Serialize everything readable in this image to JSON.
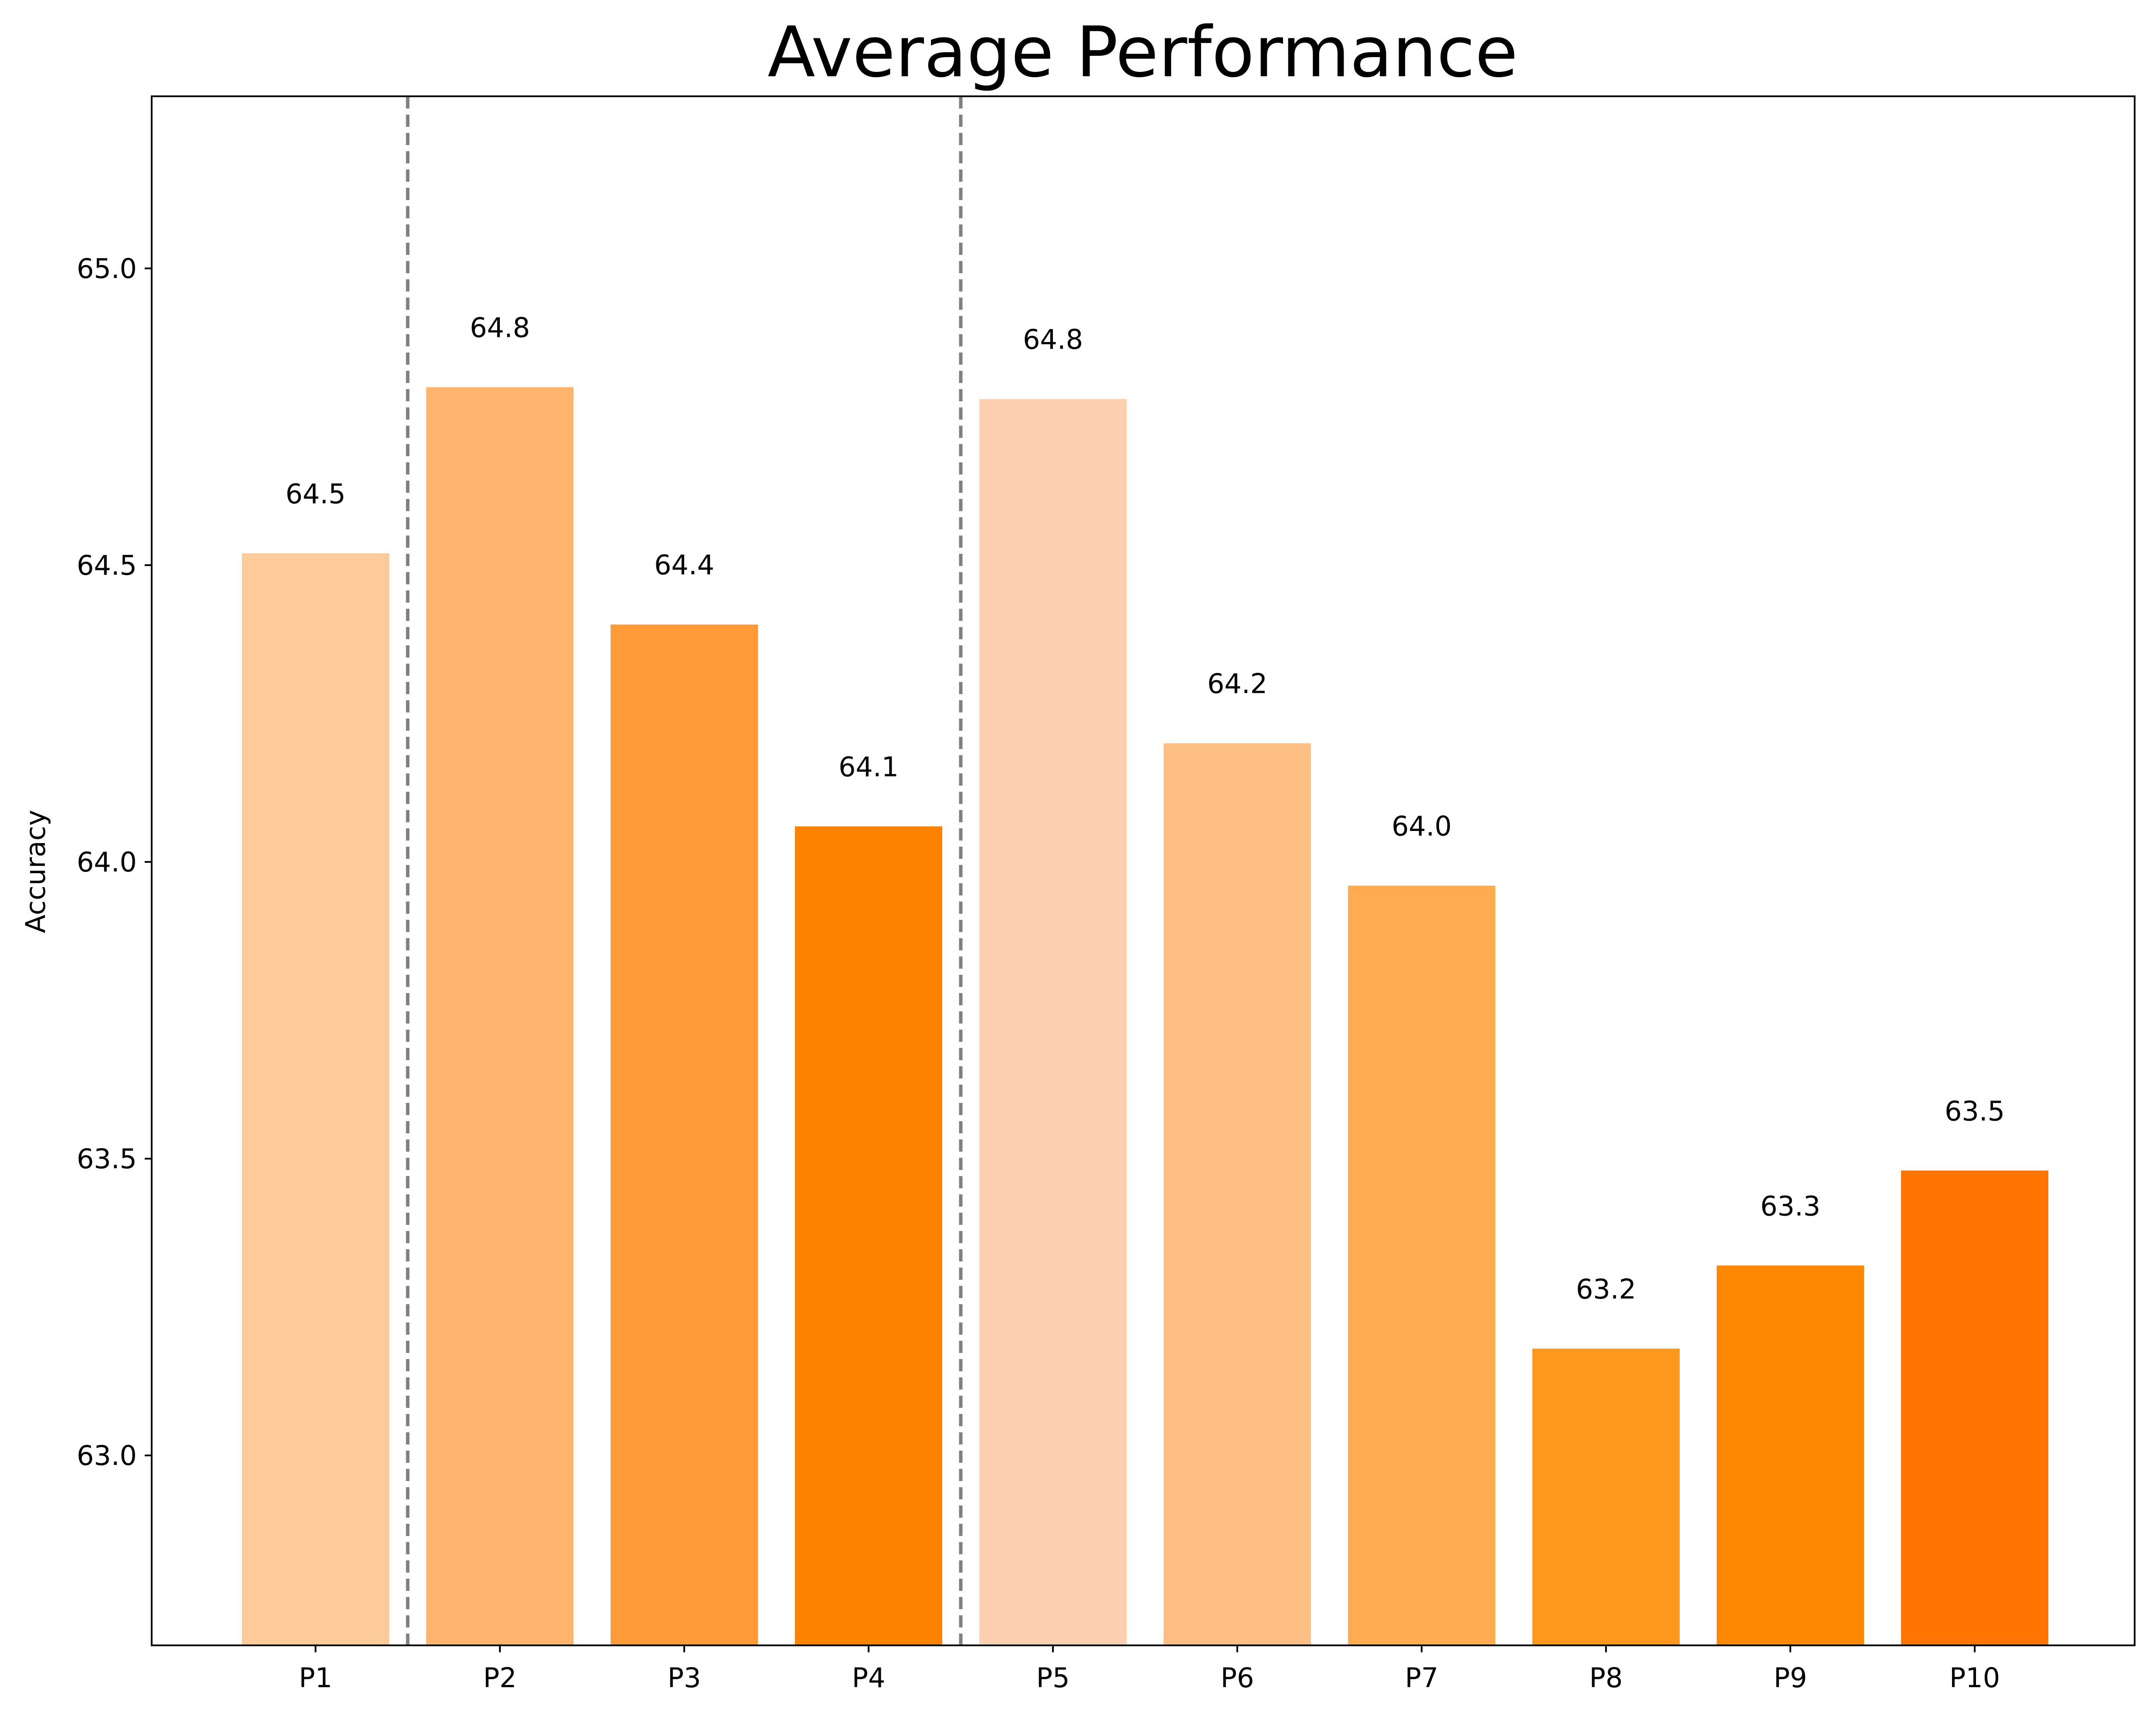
{
  "chart_data": {
    "type": "bar",
    "title": "Average Performance",
    "xlabel": "",
    "ylabel": "Accuracy",
    "categories": [
      "P1",
      "P2",
      "P3",
      "P4",
      "P5",
      "P6",
      "P7",
      "P8",
      "P9",
      "P10"
    ],
    "values": [
      64.52,
      64.8,
      64.4,
      64.06,
      64.78,
      64.2,
      63.96,
      63.18,
      63.32,
      63.48
    ],
    "data_labels": [
      "64.5",
      "64.8",
      "64.4",
      "64.1",
      "64.8",
      "64.2",
      "64.0",
      "63.2",
      "63.3",
      "63.5"
    ],
    "bar_colors": [
      "#fdca9a",
      "#feb46c",
      "#fe9b38",
      "#fe8202",
      "#fed0b2",
      "#febf84",
      "#feac4f",
      "#fe971e",
      "#fe8802",
      "#fe7502"
    ],
    "ylim": [
      62.68,
      65.29
    ],
    "yticks": [
      63.0,
      63.5,
      64.0,
      64.5,
      65.0
    ],
    "ytick_labels": [
      "63.0",
      "63.5",
      "64.0",
      "64.5",
      "65.0"
    ],
    "separators_after_category": [
      "P1",
      "P4"
    ],
    "separator_color": "#808080",
    "grid": false,
    "legend": "none"
  }
}
